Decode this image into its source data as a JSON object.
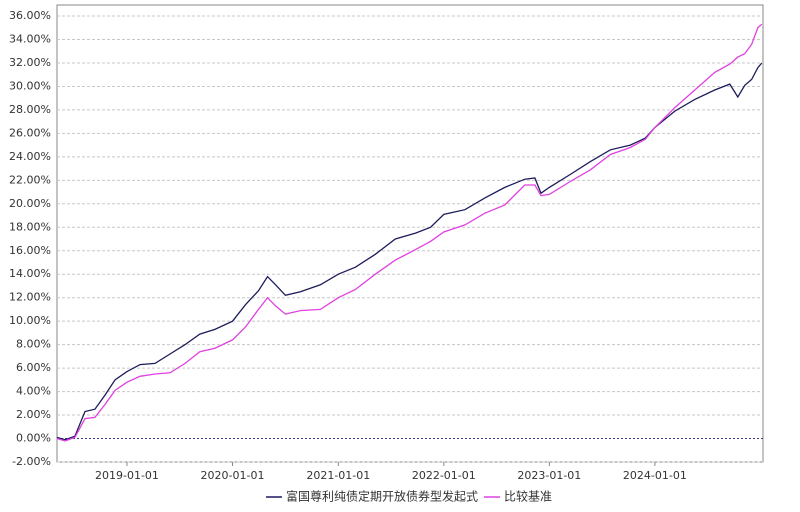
{
  "chart_data": {
    "type": "line",
    "x": [
      "2018-05-04",
      "2018-06-01",
      "2018-07-05",
      "2018-08-09",
      "2018-09-12",
      "2018-10-17",
      "2018-11-21",
      "2019-01-01",
      "2019-02-15",
      "2019-04-08",
      "2019-05-30",
      "2019-07-21",
      "2019-09-10",
      "2019-11-01",
      "2020-01-01",
      "2020-02-15",
      "2020-03-31",
      "2020-05-01",
      "2020-05-29",
      "2020-07-02",
      "2020-08-23",
      "2020-10-31",
      "2021-01-01",
      "2021-03-01",
      "2021-05-09",
      "2021-07-17",
      "2021-09-25",
      "2021-11-16",
      "2022-01-01",
      "2022-03-15",
      "2022-05-23",
      "2022-07-31",
      "2022-10-08",
      "2022-11-12",
      "2022-12-03",
      "2023-01-01",
      "2023-03-14",
      "2023-05-23",
      "2023-07-31",
      "2023-10-08",
      "2023-11-29",
      "2024-01-01",
      "2024-03-10",
      "2024-05-18",
      "2024-07-26",
      "2024-09-16",
      "2024-10-14",
      "2024-11-07",
      "2024-12-01",
      "2024-12-22",
      "2025-01-05"
    ],
    "series": [
      {
        "name": "富国尊利纯债定期开放债券型发起式",
        "color": "#1c1c5c",
        "values": [
          0.1,
          -0.1,
          0.2,
          2.3,
          2.5,
          3.7,
          5.0,
          5.7,
          6.3,
          6.4,
          7.2,
          8.0,
          8.9,
          9.3,
          10.0,
          11.4,
          12.6,
          13.8,
          13.1,
          12.2,
          12.5,
          13.1,
          14.0,
          14.6,
          15.7,
          17.0,
          17.5,
          18.0,
          19.1,
          19.5,
          20.5,
          21.4,
          22.1,
          22.2,
          20.9,
          21.4,
          22.5,
          23.6,
          24.6,
          25.0,
          25.6,
          26.5,
          27.9,
          28.9,
          29.7,
          30.2,
          29.1,
          30.1,
          30.6,
          31.6,
          32.0
        ]
      },
      {
        "name": "比较基准",
        "color": "#e040e0",
        "values": [
          0.0,
          -0.2,
          0.1,
          1.7,
          1.8,
          2.9,
          4.1,
          4.8,
          5.3,
          5.5,
          5.6,
          6.4,
          7.4,
          7.7,
          8.4,
          9.5,
          11.0,
          12.0,
          11.3,
          10.6,
          10.9,
          11.0,
          12.0,
          12.7,
          14.0,
          15.2,
          16.1,
          16.8,
          17.6,
          18.2,
          19.2,
          19.9,
          21.6,
          21.6,
          20.7,
          20.8,
          21.9,
          22.9,
          24.2,
          24.8,
          25.5,
          26.5,
          28.2,
          29.7,
          31.2,
          31.9,
          32.5,
          32.8,
          33.6,
          35.0,
          35.3
        ]
      }
    ],
    "xlim": [
      "2018-05-04",
      "2025-01-09"
    ],
    "xticks": [
      "2019-01-01",
      "2020-01-01",
      "2021-01-01",
      "2022-01-01",
      "2023-01-01",
      "2024-01-01"
    ],
    "ylim": [
      -2,
      36.94
    ],
    "yticks": [
      {
        "value": -2,
        "label": "-2.00%"
      },
      {
        "value": 0,
        "label": "0.00%"
      },
      {
        "value": 2,
        "label": "2.00%"
      },
      {
        "value": 4,
        "label": "4.00%"
      },
      {
        "value": 6,
        "label": "6.00%"
      },
      {
        "value": 8,
        "label": "8.00%"
      },
      {
        "value": 10,
        "label": "10.00%"
      },
      {
        "value": 12,
        "label": "12.00%"
      },
      {
        "value": 14,
        "label": "14.00%"
      },
      {
        "value": 16,
        "label": "16.00%"
      },
      {
        "value": 18,
        "label": "18.00%"
      },
      {
        "value": 20,
        "label": "20.00%"
      },
      {
        "value": 22,
        "label": "22.00%"
      },
      {
        "value": 24,
        "label": "24.00%"
      },
      {
        "value": 26,
        "label": "26.00%"
      },
      {
        "value": 28,
        "label": "28.00%"
      },
      {
        "value": 30,
        "label": "30.00%"
      },
      {
        "value": 32,
        "label": "32.00%"
      },
      {
        "value": 34,
        "label": "34.00%"
      },
      {
        "value": 36,
        "label": "36.00%"
      }
    ],
    "grid": true,
    "legend": "bottom"
  }
}
